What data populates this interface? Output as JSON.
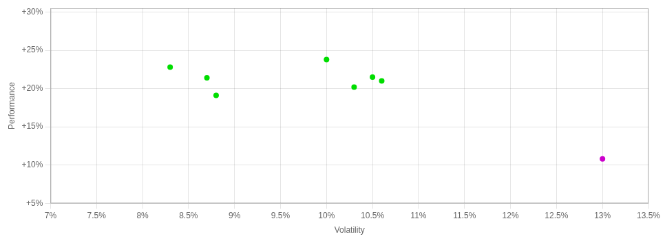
{
  "chart_data": {
    "type": "scatter",
    "x_label": "Volatility",
    "y_label": "Performance",
    "marker": "circle",
    "grid": true,
    "series": [
      {
        "color": "#00dd00",
        "x": [
          0.083,
          0.087,
          0.088,
          0.1,
          0.103,
          0.105,
          0.106
        ],
        "values": [
          0.228,
          0.214,
          0.191,
          0.238,
          0.202,
          0.215,
          0.21
        ]
      },
      {
        "color": "#cc00cc",
        "x": [
          0.13
        ],
        "values": [
          0.108
        ]
      }
    ],
    "xlim": [
      0.07,
      0.135
    ],
    "ylim": [
      0.05,
      0.305
    ],
    "xticks": [
      {
        "value": 0.07,
        "label": "7%"
      },
      {
        "value": 0.075,
        "label": "7.5%"
      },
      {
        "value": 0.08,
        "label": "8%"
      },
      {
        "value": 0.085,
        "label": "8.5%"
      },
      {
        "value": 0.09,
        "label": "9%"
      },
      {
        "value": 0.095,
        "label": "9.5%"
      },
      {
        "value": 0.1,
        "label": "10%"
      },
      {
        "value": 0.105,
        "label": "10.5%"
      },
      {
        "value": 0.11,
        "label": "11%"
      },
      {
        "value": 0.115,
        "label": "11.5%"
      },
      {
        "value": 0.12,
        "label": "12%"
      },
      {
        "value": 0.125,
        "label": "12.5%"
      },
      {
        "value": 0.13,
        "label": "13%"
      },
      {
        "value": 0.135,
        "label": "13.5%"
      }
    ],
    "yticks": [
      {
        "value": 0.05,
        "label": "+5%"
      },
      {
        "value": 0.1,
        "label": "+10%"
      },
      {
        "value": 0.15,
        "label": "+15%"
      },
      {
        "value": 0.2,
        "label": "+20%"
      },
      {
        "value": 0.25,
        "label": "+25%"
      },
      {
        "value": 0.3,
        "label": "+30%"
      }
    ]
  }
}
